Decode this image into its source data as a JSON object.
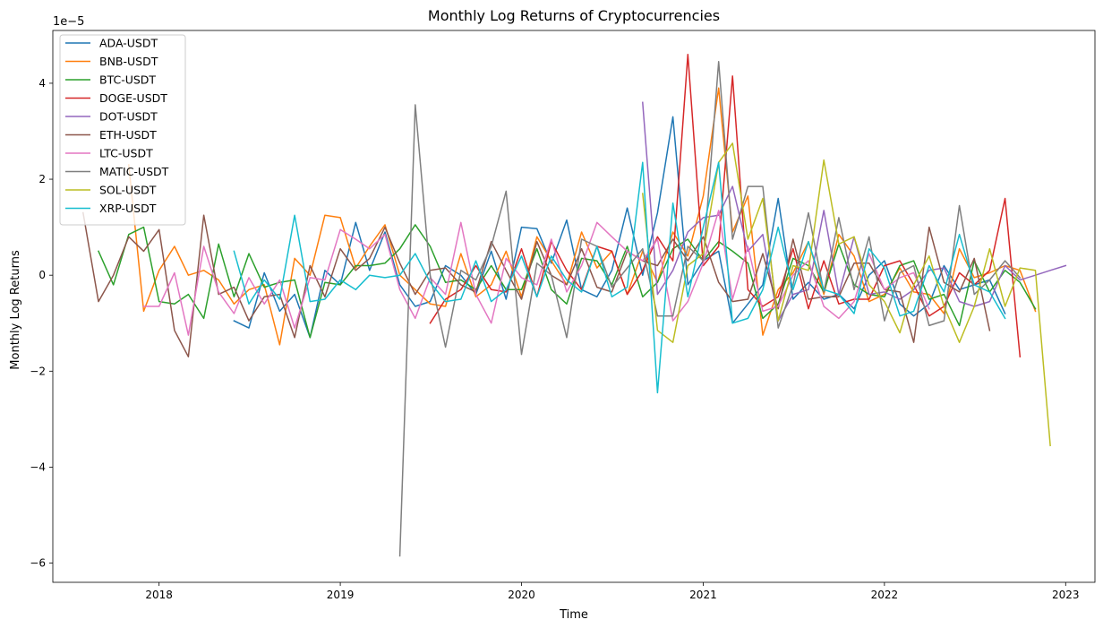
{
  "chart_data": {
    "type": "line",
    "title": "Monthly Log Returns of Cryptocurrencies",
    "xlabel": "Time",
    "ylabel": "Monthly Log Returns",
    "y_scale_label": "1e−5",
    "y_multiplier": 1e-05,
    "xlim": [
      "2017-06-01",
      "2023-03-01"
    ],
    "ylim": [
      -6.4,
      5.1
    ],
    "x_ticks": [
      {
        "date": "2018-01-01",
        "label": "2018"
      },
      {
        "date": "2019-01-01",
        "label": "2019"
      },
      {
        "date": "2020-01-01",
        "label": "2020"
      },
      {
        "date": "2021-01-01",
        "label": "2021"
      },
      {
        "date": "2022-01-01",
        "label": "2022"
      },
      {
        "date": "2023-01-01",
        "label": "2023"
      }
    ],
    "y_ticks": [
      {
        "value": 4,
        "label": "4"
      },
      {
        "value": 2,
        "label": "2"
      },
      {
        "value": 0,
        "label": "0"
      },
      {
        "value": -2,
        "label": "−2"
      },
      {
        "value": -4,
        "label": "−4"
      },
      {
        "value": -6,
        "label": "−6"
      }
    ],
    "grid": false,
    "legend_position": "top-left",
    "series": [
      {
        "name": "ADA-USDT",
        "color": "#1f77b4",
        "start": "2018-05",
        "values": [
          null,
          -0.95,
          -1.1,
          0.05,
          -0.75,
          -0.4,
          -1.3,
          0.1,
          -0.2,
          1.1,
          0.1,
          0.9,
          -0.2,
          -0.65,
          -0.55,
          0.2,
          0.0,
          -0.4,
          0.5,
          -0.5,
          1.0,
          0.97,
          0.25,
          1.15,
          -0.3,
          -0.45,
          0.1,
          1.4,
          0.0,
          1.3,
          3.3,
          -0.2,
          0.3,
          0.5,
          -1.0,
          -0.6,
          -0.2,
          1.6,
          -0.5,
          -0.15,
          -0.5,
          -0.4,
          -0.7,
          0.0,
          0.3,
          -0.6,
          -0.85,
          -0.6,
          0.2,
          -0.3,
          -0.2,
          -0.1,
          -0.8
        ]
      },
      {
        "name": "BNB-USDT",
        "color": "#ff7f0e",
        "start": "2017-11",
        "values": [
          2.3,
          -0.75,
          0.1,
          0.6,
          0.0,
          0.1,
          -0.1,
          -0.6,
          -0.3,
          -0.2,
          -1.45,
          0.35,
          0.0,
          1.25,
          1.2,
          0.15,
          0.6,
          1.05,
          0.0,
          -0.3,
          -0.6,
          -0.65,
          0.45,
          -0.45,
          -0.2,
          0.5,
          -0.45,
          0.8,
          0.3,
          -0.2,
          0.9,
          0.15,
          0.5,
          -0.4,
          0.5,
          -0.15,
          0.9,
          0.4,
          1.65,
          3.9,
          0.9,
          1.65,
          -1.25,
          -0.3,
          0.05,
          0.7,
          -0.4,
          0.85,
          0.4,
          -0.55,
          -0.4,
          0.15,
          -0.35,
          -0.4,
          -0.8,
          0.55,
          -0.05,
          0.05,
          0.2,
          0.1,
          -0.75
        ]
      },
      {
        "name": "BTC-USDT",
        "color": "#2ca02c",
        "start": "2017-09",
        "values": [
          0.5,
          -0.2,
          0.85,
          1.0,
          -0.55,
          -0.6,
          -0.4,
          -0.9,
          0.65,
          -0.45,
          0.45,
          -0.25,
          -0.15,
          -0.1,
          -1.3,
          -0.15,
          -0.2,
          0.2,
          0.2,
          0.25,
          0.55,
          1.05,
          0.6,
          -0.15,
          -0.1,
          -0.3,
          0.2,
          -0.3,
          -0.3,
          0.55,
          -0.3,
          -0.6,
          0.35,
          0.3,
          -0.2,
          0.6,
          -0.45,
          -0.15,
          0.55,
          0.75,
          0.3,
          0.7,
          0.5,
          0.25,
          -0.9,
          -0.6,
          0.35,
          0.2,
          -0.35,
          0.65,
          -0.2,
          -0.4,
          -0.45,
          0.2,
          0.3,
          -0.5,
          -0.4,
          -1.05,
          0.3,
          -0.35,
          0.1,
          -0.15,
          -0.7
        ]
      },
      {
        "name": "DOGE-USDT",
        "color": "#d62728",
        "start": "2019-07",
        "values": [
          -1.0,
          -0.5,
          -0.3,
          0.2,
          -0.3,
          -0.35,
          0.55,
          -0.45,
          0.7,
          0.1,
          -0.3,
          0.6,
          0.5,
          -0.4,
          0.1,
          0.8,
          0.3,
          4.6,
          0.2,
          0.6,
          4.15,
          -0.3,
          -0.65,
          -0.45,
          0.55,
          -0.7,
          0.3,
          -0.6,
          -0.5,
          -0.5,
          0.2,
          0.3,
          -0.2,
          -0.85,
          -0.65,
          0.05,
          -0.2,
          0.1,
          1.6,
          -1.7
        ]
      },
      {
        "name": "DOT-USDT",
        "color": "#9467bd",
        "start": "2020-09",
        "values": [
          3.6,
          -0.4,
          0.1,
          0.9,
          1.2,
          1.25,
          1.85,
          0.5,
          0.85,
          -0.95,
          -0.4,
          -0.3,
          1.35,
          -0.4,
          0.8,
          -0.4,
          -0.35,
          -0.5,
          -0.3,
          0.1,
          0.15,
          -0.55,
          -0.65,
          -0.55,
          0.2,
          -0.1,
          0.0,
          0.1,
          0.2
        ]
      },
      {
        "name": "ETH-USDT",
        "color": "#8c564b",
        "start": "2017-08",
        "values": [
          1.3,
          -0.55,
          0.0,
          0.8,
          0.5,
          0.95,
          -1.15,
          -1.7,
          1.25,
          -0.4,
          -0.25,
          -0.95,
          -0.45,
          -0.4,
          -1.3,
          0.2,
          -0.45,
          0.55,
          0.1,
          0.35,
          1.0,
          0.25,
          -0.4,
          0.1,
          0.15,
          -0.2,
          -0.35,
          0.7,
          0.1,
          -0.5,
          0.7,
          0.0,
          -0.2,
          0.55,
          -0.25,
          -0.35,
          0.5,
          0.3,
          0.2,
          0.75,
          0.3,
          0.8,
          -0.15,
          -0.55,
          -0.5,
          0.45,
          -0.7,
          0.75,
          -0.5,
          -0.45,
          -0.45,
          0.25,
          0.25,
          -0.3,
          -0.35,
          -1.4,
          1.0,
          -0.15,
          -0.35,
          0.35,
          -1.15
        ]
      },
      {
        "name": "LTC-USDT",
        "color": "#e377c2",
        "start": "2017-12",
        "values": [
          -0.65,
          -0.65,
          0.05,
          -1.25,
          0.6,
          -0.35,
          -0.8,
          -0.05,
          -0.6,
          -0.1,
          -1.1,
          -0.05,
          -0.1,
          0.95,
          0.75,
          0.55,
          0.85,
          -0.3,
          -0.9,
          -0.05,
          -0.4,
          1.1,
          -0.4,
          -1.0,
          0.35,
          -0.05,
          -0.2,
          0.75,
          -0.35,
          0.2,
          1.1,
          0.8,
          0.5,
          0.3,
          0.75,
          -0.95,
          -0.55,
          0.25,
          1.35,
          -0.5,
          0.6,
          -0.75,
          -0.65,
          0.0,
          0.3,
          -0.65,
          -0.9,
          -0.55,
          0.45,
          -0.3,
          -0.05,
          0.05,
          -0.7
        ]
      },
      {
        "name": "MATIC-USDT",
        "color": "#7f7f7f",
        "start": "2019-05",
        "values": [
          -5.85,
          3.55,
          0.0,
          -1.5,
          0.1,
          -0.1,
          0.6,
          1.75,
          -1.65,
          0.25,
          0.0,
          -1.3,
          0.75,
          0.6,
          -0.25,
          0.15,
          0.55,
          -0.85,
          -0.85,
          0.6,
          0.3,
          4.45,
          0.75,
          1.85,
          1.85,
          -1.1,
          -0.2,
          1.3,
          -0.35,
          1.2,
          -0.3,
          0.8,
          -0.95,
          0.05,
          0.2,
          -1.05,
          -0.95,
          1.45,
          -0.4,
          -0.1,
          0.3,
          -0.05
        ]
      },
      {
        "name": "SOL-USDT",
        "color": "#bcbd22",
        "start": "2020-09",
        "values": [
          1.7,
          -1.15,
          -1.4,
          0.2,
          0.45,
          2.35,
          2.75,
          0.75,
          1.6,
          -0.95,
          0.2,
          0.1,
          2.4,
          0.65,
          0.8,
          -0.2,
          -0.55,
          -1.2,
          -0.2,
          0.4,
          -0.65,
          -1.4,
          -0.65,
          0.55,
          -0.65,
          0.15,
          0.1,
          -3.55
        ]
      },
      {
        "name": "XRP-USDT",
        "color": "#17becf",
        "start": "2018-06",
        "values": [
          0.5,
          -0.6,
          -0.1,
          -0.5,
          1.25,
          -0.55,
          -0.5,
          -0.1,
          -0.3,
          0.0,
          -0.05,
          0.0,
          0.45,
          -0.15,
          -0.55,
          -0.5,
          0.3,
          -0.55,
          -0.3,
          0.4,
          -0.45,
          0.4,
          -0.1,
          -0.35,
          0.6,
          -0.45,
          -0.25,
          2.35,
          -2.45,
          1.5,
          -0.45,
          1.0,
          2.35,
          -1.0,
          -0.9,
          -0.3,
          1.0,
          -0.3,
          0.7,
          -0.3,
          -0.4,
          -0.8,
          0.55,
          0.15,
          -0.85,
          -0.75,
          0.2,
          -0.35,
          0.85,
          -0.2,
          -0.35,
          -0.9
        ]
      }
    ]
  }
}
